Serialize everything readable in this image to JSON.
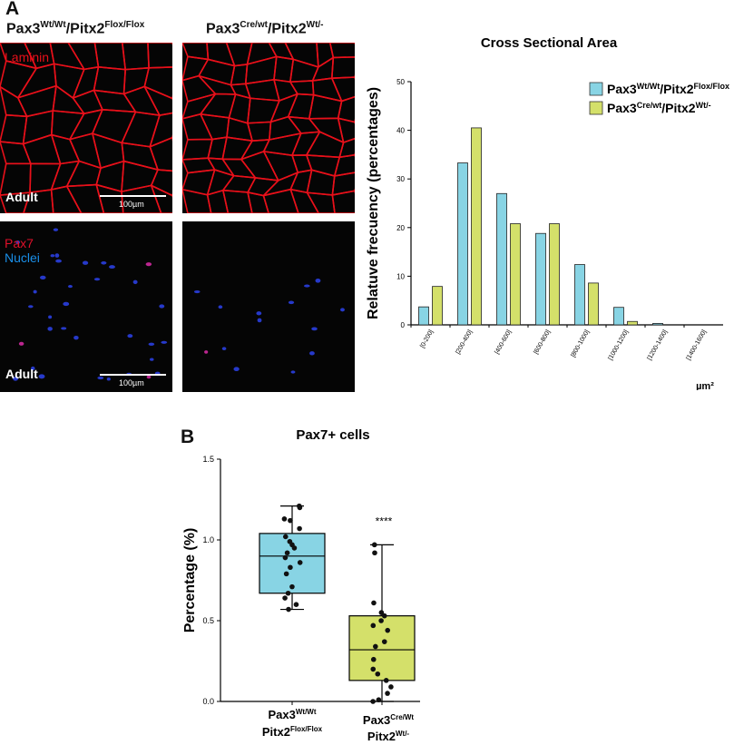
{
  "panel_a": {
    "letter": "A",
    "geno_left": {
      "base1": "Pax3",
      "sup1": "Wt/Wt",
      "base2": "/Pitx2",
      "sup2": "Flox/Flox"
    },
    "geno_right": {
      "base1": "Pax3",
      "sup1": "Cre/wt",
      "base2": "/Pitx2",
      "sup2": "Wt/-"
    },
    "micro_top_label": "Laminin",
    "micro_bottom_label1": "Pax7",
    "micro_bottom_label2": "Nuclei",
    "adult_label": "Adult",
    "scale_label": "100µm",
    "colors": {
      "laminin": "#e8101a",
      "pax7": "#e0102a",
      "nuclei": "#1a8fe8"
    }
  },
  "panel_b": {
    "letter": "B"
  },
  "chart_data": [
    {
      "type": "bar",
      "title": "Cross Sectional Area",
      "ylabel": "Relatuve frecuency (percentages)",
      "xlabel": "µm²",
      "ylim": [
        0,
        50
      ],
      "yticks": [
        0,
        10,
        20,
        30,
        40,
        50
      ],
      "categories": [
        "[0-200]",
        "[200-400]",
        "[400-600]",
        "[600-800]",
        "[800-1000]",
        "[1000-1200]",
        "[1200-1400]",
        "[1400-1600]"
      ],
      "series": [
        {
          "name_base": "Pax3",
          "name_sup1": "Wt/Wt",
          "name_mid": "/Pitx2",
          "name_sup2": "Flox/Flox",
          "color": "#88d4e4",
          "values": [
            3.7,
            33.3,
            27.0,
            18.8,
            12.4,
            3.6,
            0.3,
            0.0
          ]
        },
        {
          "name_base": "Pax3",
          "name_sup1": "Cre/wt",
          "name_mid": "/Pitx2",
          "name_sup2": "Wt/-",
          "color": "#d4e06a",
          "values": [
            7.9,
            40.5,
            20.8,
            20.8,
            8.6,
            0.7,
            0.0,
            0.0
          ]
        }
      ],
      "legend": "top-right",
      "grid": false
    },
    {
      "type": "box",
      "title": "Pax7+ cells",
      "ylabel": "Percentage (%)",
      "ylim": [
        0,
        1.5
      ],
      "yticks": [
        "0.0",
        "0.5",
        "1.0",
        "1.5"
      ],
      "significance": "****",
      "groups": [
        {
          "label_line1_base": "Pax3",
          "label_line1_sup": "Wt/Wt",
          "label_line2_base": "Pitx2",
          "label_line2_sup": "Flox/Flox",
          "color": "#88d4e4",
          "min": 0.57,
          "q1": 0.67,
          "median": 0.9,
          "q3": 1.04,
          "max": 1.21,
          "points": [
            1.21,
            1.2,
            1.13,
            1.12,
            1.07,
            1.02,
            0.99,
            0.97,
            0.95,
            0.92,
            0.89,
            0.86,
            0.83,
            0.79,
            0.71,
            0.67,
            0.64,
            0.6,
            0.57
          ]
        },
        {
          "label_line1_base": "Pax3",
          "label_line1_sup": "Cre/Wt",
          "label_line2_base": "Pitx2",
          "label_line2_sup": "Wt/-",
          "color": "#d4e06a",
          "min": 0.0,
          "q1": 0.13,
          "median": 0.32,
          "q3": 0.53,
          "max": 0.97,
          "points": [
            0.97,
            0.92,
            0.61,
            0.55,
            0.53,
            0.5,
            0.47,
            0.44,
            0.37,
            0.34,
            0.26,
            0.2,
            0.17,
            0.13,
            0.09,
            0.05,
            0.01,
            0.0
          ]
        }
      ]
    }
  ]
}
